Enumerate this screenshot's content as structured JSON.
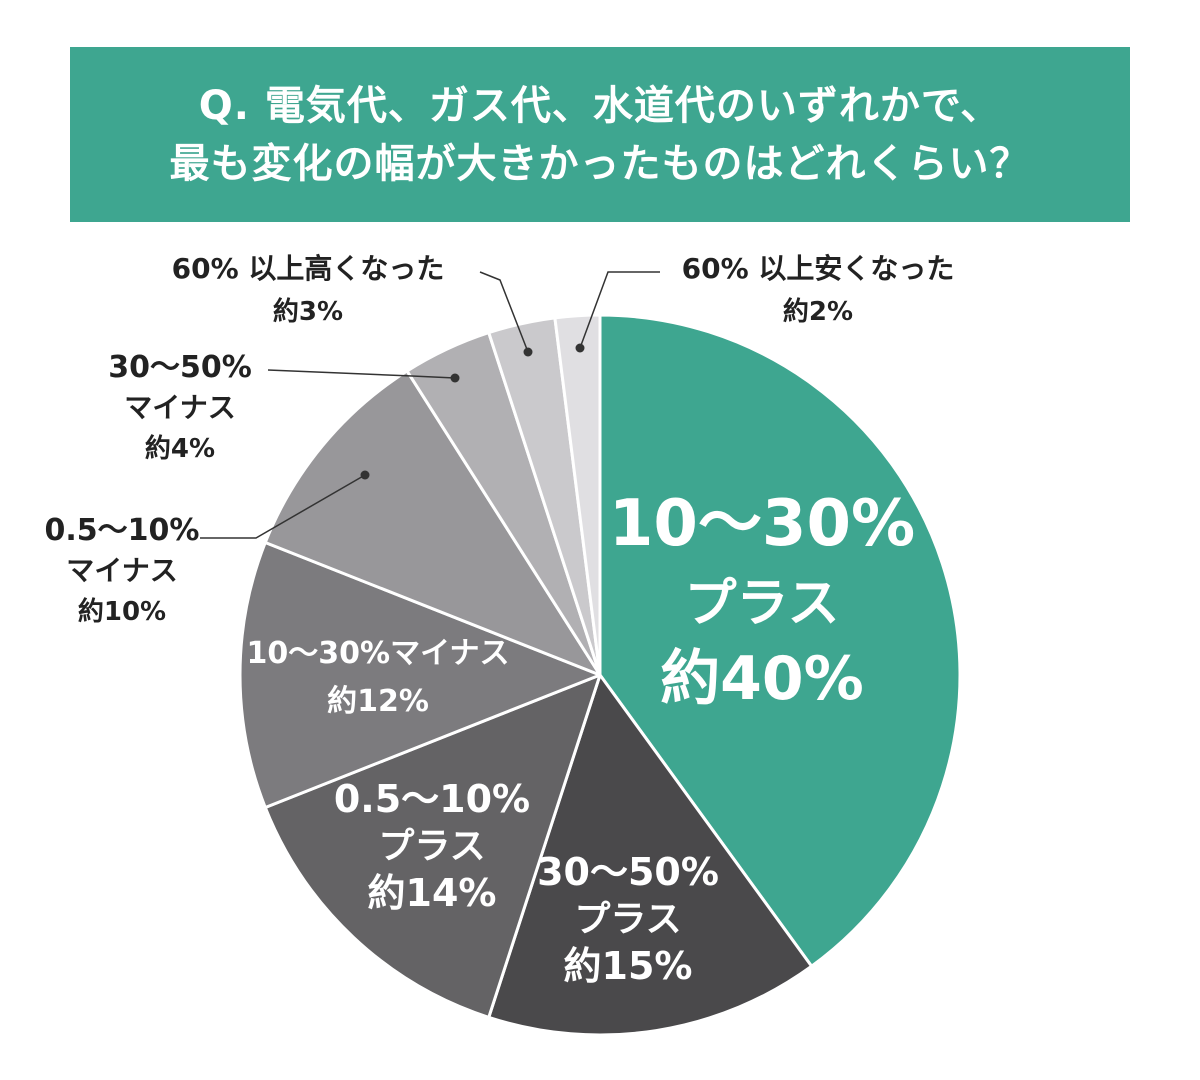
{
  "title": {
    "line1": "Q. 電気代、ガス代、水道代のいずれかで、",
    "line2": "最も変化の幅が大きかったものはどれくらい？"
  },
  "chart_data": {
    "type": "pie",
    "start": "12 o'clock",
    "direction": "clockwise",
    "slices": [
      {
        "lines": [
          "10～30%",
          "プラス",
          "約40%"
        ],
        "value": 40,
        "color": "#3ea690"
      },
      {
        "lines": [
          "30～50%",
          "プラス",
          "約15%"
        ],
        "value": 15,
        "color": "#4a494b"
      },
      {
        "lines": [
          "0.5～10%",
          "プラス",
          "約14%"
        ],
        "value": 14,
        "color": "#646365"
      },
      {
        "lines": [
          "10～30%マイナス",
          "約12%"
        ],
        "value": 12,
        "color": "#7c7b7e"
      },
      {
        "lines": [
          "0.5～10%",
          "マイナス",
          "約10%"
        ],
        "value": 10,
        "color": "#98979a"
      },
      {
        "lines": [
          "30～50%",
          "マイナス",
          "約4%"
        ],
        "value": 4,
        "color": "#b1b0b3"
      },
      {
        "lines": [
          "60% 以上高くなった",
          "約3%"
        ],
        "value": 3,
        "color": "#cac9cc"
      },
      {
        "lines": [
          "60% 以上安くなった",
          "約2%"
        ],
        "value": 2,
        "color": "#e0dfe2"
      }
    ]
  }
}
